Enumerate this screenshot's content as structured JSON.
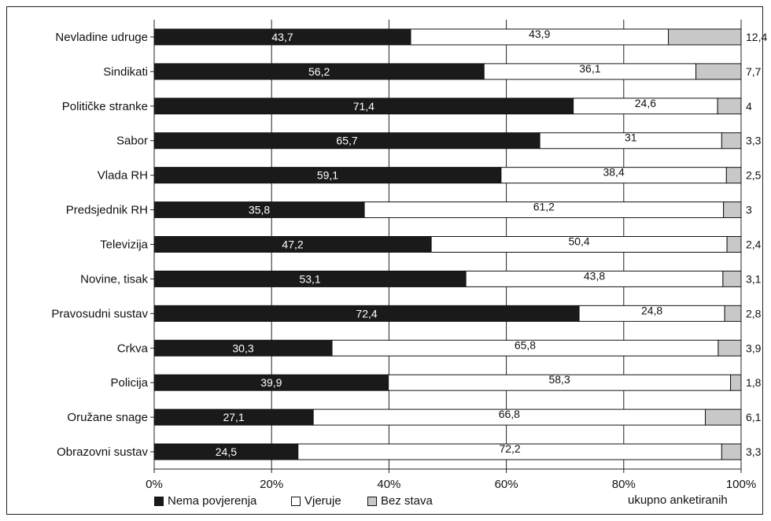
{
  "chart_data": {
    "type": "bar",
    "orientation": "horizontal",
    "stacked": true,
    "categories": [
      "Nevladine udruge",
      "Sindikati",
      "Političke stranke",
      "Sabor",
      "Vlada RH",
      "Predsjednik RH",
      "Televizija",
      "Novine, tisak",
      "Pravosudni sustav",
      "Crkva",
      "Policija",
      "Oružane snage",
      "Obrazovni sustav"
    ],
    "series": [
      {
        "name": "Nema povjerenja",
        "color": "#1a1a1a",
        "values": [
          43.7,
          56.2,
          71.4,
          65.7,
          59.1,
          35.8,
          47.2,
          53.1,
          72.4,
          30.3,
          39.9,
          27.1,
          24.5
        ]
      },
      {
        "name": "Vjeruje",
        "color": "#ffffff",
        "values": [
          43.9,
          36.1,
          24.6,
          31,
          38.4,
          61.2,
          50.4,
          43.8,
          24.8,
          65.8,
          58.3,
          66.8,
          72.2
        ]
      },
      {
        "name": "Bez stava",
        "color": "#c8c8c8",
        "values": [
          12.4,
          7.7,
          4,
          3.3,
          2.5,
          3,
          2.4,
          3.1,
          2.8,
          3.9,
          1.8,
          6.1,
          3.3
        ]
      }
    ],
    "data_labels": [
      [
        "43,7",
        "43,9",
        "12,4"
      ],
      [
        "56,2",
        "36,1",
        "7,7"
      ],
      [
        "71,4",
        "24,6",
        "4"
      ],
      [
        "65,7",
        "31",
        "3,3"
      ],
      [
        "59,1",
        "38,4",
        "2,5"
      ],
      [
        "35,8",
        "61,2",
        "3"
      ],
      [
        "47,2",
        "50,4",
        "2,4"
      ],
      [
        "53,1",
        "43,8",
        "3,1"
      ],
      [
        "72,4",
        "24,8",
        "2,8"
      ],
      [
        "30,3",
        "65,8",
        "3,9"
      ],
      [
        "39,9",
        "58,3",
        "1,8"
      ],
      [
        "27,1",
        "66,8",
        "6,1"
      ],
      [
        "24,5",
        "72,2",
        "3,3"
      ]
    ],
    "xticks": [
      "0%",
      "20%",
      "40%",
      "60%",
      "80%",
      "100%"
    ],
    "xlim": [
      0,
      100
    ],
    "grid": true,
    "legend_position": "bottom-left",
    "note": "ukupno anketiranih"
  }
}
